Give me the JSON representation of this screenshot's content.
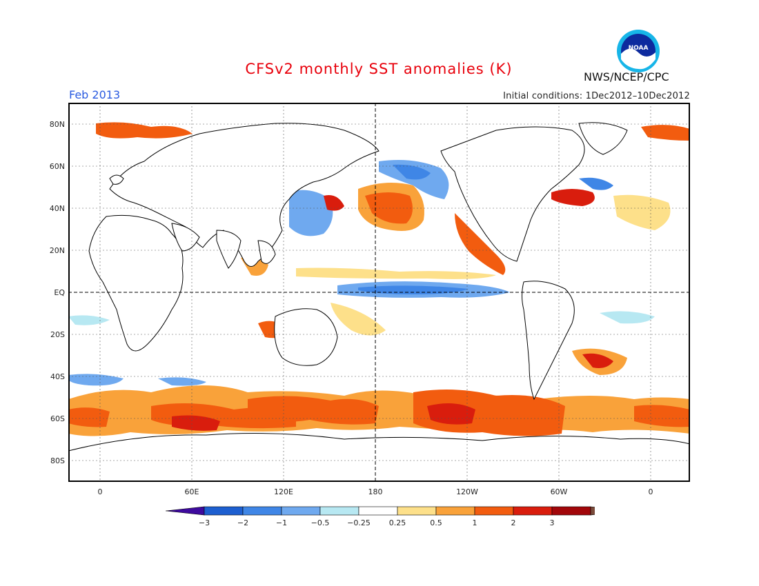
{
  "title": "CFSv2 monthly SST anomalies (K)",
  "agency": "NWS/NCEP/CPC",
  "logo_text": "NOAA",
  "forecast_month": "Feb 2013",
  "initial_conditions": "Initial conditions: 1Dec2012–10Dec2012",
  "y_axis_labels": [
    "80N",
    "60N",
    "40N",
    "20N",
    "EQ",
    "20S",
    "40S",
    "60S",
    "80S"
  ],
  "x_axis_labels": [
    "0",
    "60E",
    "120E",
    "180",
    "120W",
    "60W",
    "0"
  ],
  "colorbar": {
    "labels": [
      "-3",
      "-2",
      "-1",
      "-0.5",
      "-0.25",
      "0.25",
      "0.5",
      "1",
      "2",
      "3"
    ],
    "colors": [
      "#3e0a9e",
      "#1d5fd0",
      "#3f86e6",
      "#6fa9ef",
      "#b7e8f2",
      "#ffffff",
      "#fde08a",
      "#f9a23a",
      "#f25c0f",
      "#d91d0d",
      "#a2070a",
      "#7a4a3a"
    ]
  },
  "colors": {
    "land": "#ffffff",
    "coast": "#000000",
    "ocean_neutral": "#ffffff",
    "title": "#e8000b",
    "month": "#2a5be0"
  }
}
